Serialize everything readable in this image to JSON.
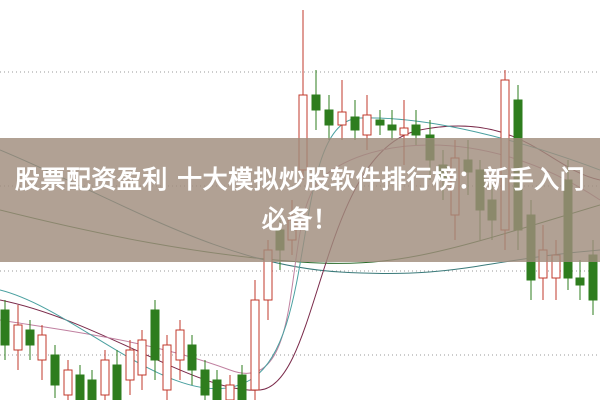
{
  "banner": {
    "title_line1": "股票配资盈利 十大模拟炒股软件排行榜：新手入门",
    "title_line2": "必备！"
  },
  "colors": {
    "up_candle": "#c0392b",
    "down_candle": "#2e7d1e",
    "banner_bg": "#a08c7d"
  }
}
